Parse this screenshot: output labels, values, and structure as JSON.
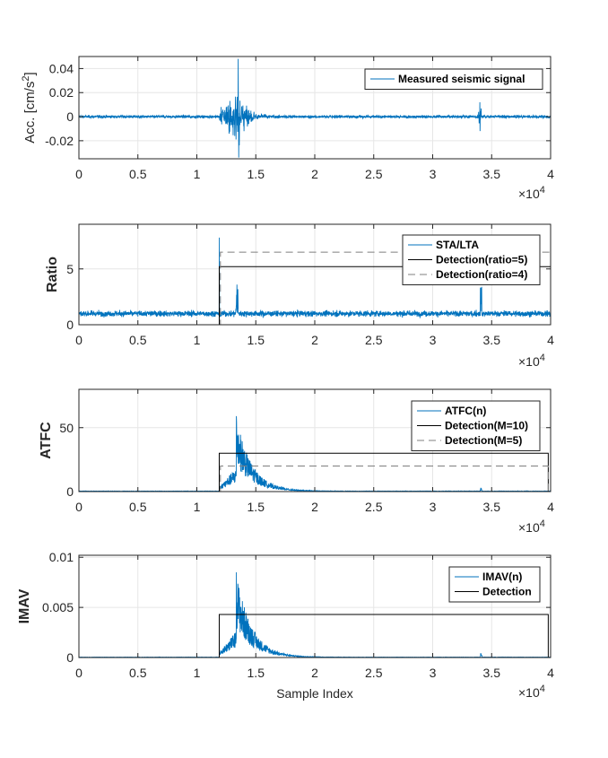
{
  "chart_data": [
    {
      "type": "line",
      "ylabel": "Acc. [cm/s²]",
      "ylabel_main": "Acc. [cm/s",
      "ylabel_sup": "2",
      "ylabel_end": "]",
      "xlim": [
        0,
        40000
      ],
      "ylim": [
        -0.035,
        0.05
      ],
      "xticks": [
        0,
        5000,
        10000,
        15000,
        20000,
        25000,
        30000,
        35000,
        40000
      ],
      "xtick_labels": [
        "0",
        "0.5",
        "1",
        "1.5",
        "2",
        "2.5",
        "3",
        "3.5",
        "4"
      ],
      "yticks": [
        -0.02,
        0,
        0.02,
        0.04
      ],
      "ytick_labels": [
        "-0.02",
        "0",
        "0.02",
        "0.04"
      ],
      "x_multiplier": "×10",
      "x_multiplier_exp": "4",
      "grid": true,
      "legend_position": "top-right",
      "series": [
        {
          "name": "Measured seismic signal",
          "style": "solid",
          "color": "#0072BD",
          "shape": {
            "kind": "seismic",
            "noise": 0.0012,
            "onset": 11900,
            "peak_at": 13500,
            "peak": 0.048,
            "trough": -0.034,
            "decay": 900,
            "blip_at": 34000,
            "blip_amp": 0.012
          }
        }
      ]
    },
    {
      "type": "line",
      "ylabel": "Ratio",
      "xlim": [
        0,
        40000
      ],
      "ylim": [
        0,
        9
      ],
      "xticks": [
        0,
        5000,
        10000,
        15000,
        20000,
        25000,
        30000,
        35000,
        40000
      ],
      "xtick_labels": [
        "0",
        "0.5",
        "1",
        "1.5",
        "2",
        "2.5",
        "3",
        "3.5",
        "4"
      ],
      "yticks": [
        0,
        5
      ],
      "ytick_labels": [
        "0",
        "5"
      ],
      "x_multiplier": "×10",
      "x_multiplier_exp": "4",
      "grid": true,
      "legend_position": "top-right",
      "series": [
        {
          "name": "STA/LTA",
          "style": "solid",
          "color": "#0072BD",
          "shape": {
            "kind": "ratio",
            "base": 1.0,
            "noise": 0.45,
            "spike_at": 11900,
            "spike": 7.8,
            "spike2_at": 13400,
            "spike2": 3.6,
            "blip_at": 34100,
            "blip": 3.3
          }
        },
        {
          "name": "Detection(ratio=5)",
          "style": "solid",
          "color": "#000000",
          "shape": {
            "kind": "box",
            "x0": 11900,
            "x1": 40000,
            "level": 5.2
          }
        },
        {
          "name": "Detection(ratio=4)",
          "style": "dashed",
          "color": "#7f7f7f",
          "shape": {
            "kind": "box",
            "x0": 12000,
            "x1": 40000,
            "level": 6.5
          }
        }
      ]
    },
    {
      "type": "line",
      "ylabel": "ATFC",
      "xlim": [
        0,
        40000
      ],
      "ylim": [
        0,
        80
      ],
      "xticks": [
        0,
        5000,
        10000,
        15000,
        20000,
        25000,
        30000,
        35000,
        40000
      ],
      "xtick_labels": [
        "0",
        "0.5",
        "1",
        "1.5",
        "2",
        "2.5",
        "3",
        "3.5",
        "4"
      ],
      "yticks": [
        0,
        50
      ],
      "ytick_labels": [
        "0",
        "50"
      ],
      "x_multiplier": "×10",
      "x_multiplier_exp": "4",
      "grid": true,
      "legend_position": "top-right",
      "series": [
        {
          "name": "ATFC(n)",
          "style": "solid",
          "color": "#0072BD",
          "shape": {
            "kind": "envelope",
            "onset": 11900,
            "peak_at": 13350,
            "peak": 59,
            "decay": 1300,
            "floor": 0.3,
            "blip_at": 34100,
            "blip": 3
          }
        },
        {
          "name": "Detection(M=10)",
          "style": "solid",
          "color": "#000000",
          "shape": {
            "kind": "box",
            "x0": 11900,
            "x1": 39800,
            "level": 30
          }
        },
        {
          "name": "Detection(M=5)",
          "style": "dashed",
          "color": "#7f7f7f",
          "shape": {
            "kind": "box",
            "x0": 12000,
            "x1": 39800,
            "level": 20
          }
        }
      ]
    },
    {
      "type": "line",
      "ylabel": "IMAV",
      "xlabel": "Sample Index",
      "xlim": [
        0,
        40000
      ],
      "ylim": [
        0,
        0.0102
      ],
      "xticks": [
        0,
        5000,
        10000,
        15000,
        20000,
        25000,
        30000,
        35000,
        40000
      ],
      "xtick_labels": [
        "0",
        "0.5",
        "1",
        "1.5",
        "2",
        "2.5",
        "3",
        "3.5",
        "4"
      ],
      "yticks": [
        0,
        0.005,
        0.01
      ],
      "ytick_labels": [
        "0",
        "0.005",
        "0.01"
      ],
      "x_multiplier": "×10",
      "x_multiplier_exp": "4",
      "grid": true,
      "legend_position": "top-right",
      "series": [
        {
          "name": "IMAV(n)",
          "style": "solid",
          "color": "#0072BD",
          "shape": {
            "kind": "envelope",
            "onset": 11900,
            "peak_at": 13350,
            "peak": 0.0085,
            "decay": 1300,
            "floor": 3e-05,
            "blip_at": 34100,
            "blip": 0.0004
          }
        },
        {
          "name": "Detection",
          "style": "solid",
          "color": "#000000",
          "shape": {
            "kind": "box",
            "x0": 11900,
            "x1": 39800,
            "level": 0.0043
          }
        }
      ]
    }
  ]
}
